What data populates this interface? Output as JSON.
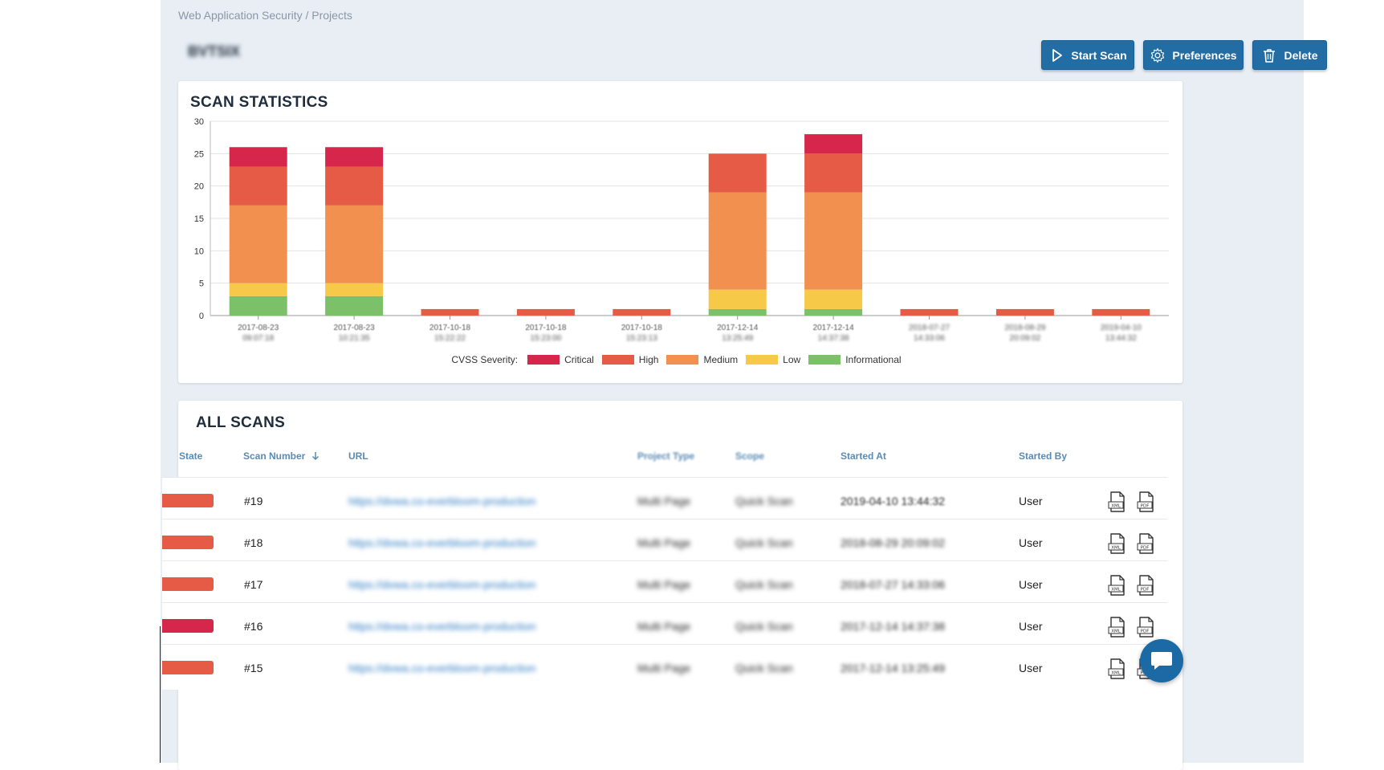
{
  "breadcrumb": "Web Application Security / Projects",
  "project_name": "BVTSIX",
  "buttons": {
    "start_scan": "Start Scan",
    "preferences": "Preferences",
    "delete": "Delete"
  },
  "stats_title": "SCAN STATISTICS",
  "scans_title": "ALL SCANS",
  "colors": {
    "critical": "#d6264b",
    "high": "#e65b46",
    "medium": "#f2914f",
    "low": "#f7c948",
    "informational": "#7cc06a",
    "accent": "#226ea4",
    "background": "#e9eef5"
  },
  "chart_data": {
    "type": "bar",
    "stacked": true,
    "title": "SCAN STATISTICS",
    "ylim": [
      0,
      30
    ],
    "yticks": [
      0,
      5,
      10,
      15,
      20,
      25,
      30
    ],
    "grid": true,
    "legend_title": "CVSS Severity:",
    "legend_position": "bottom",
    "categories": [
      [
        "2017-08-23",
        "09:07:18"
      ],
      [
        "2017-08-23",
        "10:21:35"
      ],
      [
        "2017-10-18",
        "15:22:22"
      ],
      [
        "2017-10-18",
        "15:23:00"
      ],
      [
        "2017-10-18",
        "15:23:13"
      ],
      [
        "2017-12-14",
        "13:25:49"
      ],
      [
        "2017-12-14",
        "14:37:38"
      ],
      [
        "2018-07-27",
        "14:33:06"
      ],
      [
        "2018-08-29",
        "20:09:02"
      ],
      [
        "2019-04-10",
        "13:44:32"
      ]
    ],
    "series": [
      {
        "name": "Informational",
        "color": "#7cc06a",
        "values": [
          3,
          3,
          0,
          0,
          0,
          1,
          1,
          0,
          0,
          0
        ]
      },
      {
        "name": "Low",
        "color": "#f7c948",
        "values": [
          2,
          2,
          0,
          0,
          0,
          3,
          3,
          0,
          0,
          0
        ]
      },
      {
        "name": "Medium",
        "color": "#f2914f",
        "values": [
          12,
          12,
          0,
          0,
          0,
          15,
          15,
          0,
          0,
          0
        ]
      },
      {
        "name": "High",
        "color": "#e65b46",
        "values": [
          6,
          6,
          1,
          1,
          1,
          6,
          6,
          1,
          1,
          1
        ]
      },
      {
        "name": "Critical",
        "color": "#d6264b",
        "values": [
          3,
          3,
          0,
          0,
          0,
          0,
          3,
          0,
          0,
          0
        ]
      }
    ]
  },
  "legend": {
    "title": "CVSS Severity:",
    "items": [
      {
        "label": "Critical",
        "color": "#d6264b"
      },
      {
        "label": "High",
        "color": "#e65b46"
      },
      {
        "label": "Medium",
        "color": "#f2914f"
      },
      {
        "label": "Low",
        "color": "#f7c948"
      },
      {
        "label": "Informational",
        "color": "#7cc06a"
      }
    ]
  },
  "table": {
    "headers": {
      "state": "State",
      "scan_number": "Scan Number",
      "url": "URL",
      "project_type": "Project Type",
      "scope": "Scope",
      "started_at": "Started At",
      "started_by": "Started By"
    },
    "rows": [
      {
        "state_color": "#e65b46",
        "number": "#19",
        "url": "https://dvwa.co-everbloom-production",
        "project_type": "Multi Page",
        "scope": "Quick Scan",
        "started_at": "2019-04-10 13:44:32",
        "started_by": "User"
      },
      {
        "state_color": "#e65b46",
        "number": "#18",
        "url": "https://dvwa.co-everbloom-production",
        "project_type": "Multi Page",
        "scope": "Quick Scan",
        "started_at": "2018-08-29 20:09:02",
        "started_by": "User"
      },
      {
        "state_color": "#e65b46",
        "number": "#17",
        "url": "https://dvwa.co-everbloom-production",
        "project_type": "Multi Page",
        "scope": "Quick Scan",
        "started_at": "2018-07-27 14:33:06",
        "started_by": "User"
      },
      {
        "state_color": "#d6264b",
        "number": "#16",
        "url": "https://dvwa.co-everbloom-production",
        "project_type": "Multi Page",
        "scope": "Quick Scan",
        "started_at": "2017-12-14 14:37:38",
        "started_by": "User"
      },
      {
        "state_color": "#e65b46",
        "number": "#15",
        "url": "https://dvwa.co-everbloom-production",
        "project_type": "Multi Page",
        "scope": "Quick Scan",
        "started_at": "2017-12-14 13:25:49",
        "started_by": "User"
      }
    ],
    "icons": {
      "xml": "xml-file-icon",
      "pdf": "pdf-file-icon"
    }
  },
  "chat_icon": "chat-bubble-icon"
}
